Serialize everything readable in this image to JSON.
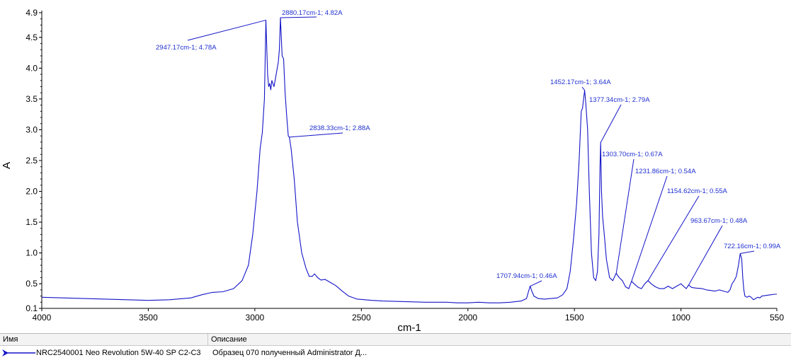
{
  "chart_data": {
    "type": "line",
    "title": "",
    "xlabel": "cm-1",
    "ylabel": "A",
    "xlim": [
      4000,
      550
    ],
    "ylim": [
      0.1,
      4.9
    ],
    "x_reversed": true,
    "grid": false,
    "x_ticks": [
      "4000",
      "3500",
      "3000",
      "2500",
      "2000",
      "1500",
      "1000",
      "550"
    ],
    "x_tick_values": [
      4000,
      3500,
      3000,
      2500,
      2000,
      1500,
      1000,
      550
    ],
    "y_ticks": [
      "0.1",
      "0.5",
      "1.0",
      "1.5",
      "2.0",
      "2.5",
      "3.0",
      "3.5",
      "4.0",
      "4.5",
      "4.9"
    ],
    "y_tick_values": [
      0.1,
      0.5,
      1.0,
      1.5,
      2.0,
      2.5,
      3.0,
      3.5,
      4.0,
      4.5,
      4.9
    ],
    "line_color": "#1414c8",
    "annotation_color": "#1f2fd0",
    "series": [
      {
        "name": "NRC2540001 Neo Revolution 5W-40 SP C2-C3",
        "points": [
          [
            4000,
            0.28
          ],
          [
            3900,
            0.27
          ],
          [
            3800,
            0.26
          ],
          [
            3700,
            0.25
          ],
          [
            3600,
            0.24
          ],
          [
            3500,
            0.23
          ],
          [
            3400,
            0.24
          ],
          [
            3300,
            0.27
          ],
          [
            3250,
            0.32
          ],
          [
            3200,
            0.36
          ],
          [
            3150,
            0.37
          ],
          [
            3100,
            0.42
          ],
          [
            3060,
            0.55
          ],
          [
            3030,
            0.8
          ],
          [
            3010,
            1.3
          ],
          [
            2990,
            2.0
          ],
          [
            2975,
            2.7
          ],
          [
            2965,
            2.95
          ],
          [
            2955,
            3.5
          ],
          [
            2948,
            4.78
          ],
          [
            2940,
            3.9
          ],
          [
            2935,
            3.7
          ],
          [
            2930,
            3.75
          ],
          [
            2925,
            3.65
          ],
          [
            2920,
            3.8
          ],
          [
            2910,
            3.7
          ],
          [
            2900,
            3.9
          ],
          [
            2890,
            4.1
          ],
          [
            2885,
            4.3
          ],
          [
            2880,
            4.82
          ],
          [
            2872,
            4.2
          ],
          [
            2865,
            4.15
          ],
          [
            2858,
            3.6
          ],
          [
            2850,
            3.2
          ],
          [
            2843,
            2.9
          ],
          [
            2838,
            2.88
          ],
          [
            2830,
            2.7
          ],
          [
            2815,
            2.2
          ],
          [
            2800,
            1.5
          ],
          [
            2780,
            1.0
          ],
          [
            2760,
            0.75
          ],
          [
            2745,
            0.62
          ],
          [
            2730,
            0.62
          ],
          [
            2720,
            0.66
          ],
          [
            2705,
            0.6
          ],
          [
            2690,
            0.56
          ],
          [
            2670,
            0.57
          ],
          [
            2650,
            0.53
          ],
          [
            2620,
            0.47
          ],
          [
            2590,
            0.38
          ],
          [
            2560,
            0.3
          ],
          [
            2520,
            0.25
          ],
          [
            2450,
            0.23
          ],
          [
            2400,
            0.22
          ],
          [
            2300,
            0.21
          ],
          [
            2200,
            0.2
          ],
          [
            2100,
            0.2
          ],
          [
            2050,
            0.19
          ],
          [
            2000,
            0.19
          ],
          [
            1950,
            0.2
          ],
          [
            1900,
            0.19
          ],
          [
            1850,
            0.19
          ],
          [
            1800,
            0.2
          ],
          [
            1750,
            0.22
          ],
          [
            1725,
            0.26
          ],
          [
            1715,
            0.38
          ],
          [
            1708,
            0.46
          ],
          [
            1700,
            0.38
          ],
          [
            1690,
            0.3
          ],
          [
            1670,
            0.26
          ],
          [
            1640,
            0.25
          ],
          [
            1610,
            0.26
          ],
          [
            1580,
            0.27
          ],
          [
            1555,
            0.32
          ],
          [
            1535,
            0.42
          ],
          [
            1520,
            0.7
          ],
          [
            1505,
            1.2
          ],
          [
            1490,
            1.8
          ],
          [
            1478,
            2.5
          ],
          [
            1468,
            3.3
          ],
          [
            1462,
            3.35
          ],
          [
            1457,
            3.5
          ],
          [
            1452,
            3.64
          ],
          [
            1447,
            3.45
          ],
          [
            1443,
            3.25
          ],
          [
            1438,
            3.0
          ],
          [
            1430,
            2.0
          ],
          [
            1420,
            1.0
          ],
          [
            1410,
            0.6
          ],
          [
            1400,
            0.55
          ],
          [
            1392,
            0.7
          ],
          [
            1385,
            1.3
          ],
          [
            1380,
            2.4
          ],
          [
            1377,
            2.79
          ],
          [
            1373,
            2.0
          ],
          [
            1368,
            1.6
          ],
          [
            1360,
            1.3
          ],
          [
            1350,
            0.9
          ],
          [
            1335,
            0.6
          ],
          [
            1320,
            0.55
          ],
          [
            1304,
            0.67
          ],
          [
            1290,
            0.6
          ],
          [
            1275,
            0.55
          ],
          [
            1260,
            0.45
          ],
          [
            1245,
            0.42
          ],
          [
            1232,
            0.54
          ],
          [
            1220,
            0.5
          ],
          [
            1200,
            0.44
          ],
          [
            1185,
            0.42
          ],
          [
            1170,
            0.5
          ],
          [
            1155,
            0.55
          ],
          [
            1140,
            0.5
          ],
          [
            1120,
            0.45
          ],
          [
            1100,
            0.42
          ],
          [
            1080,
            0.42
          ],
          [
            1060,
            0.46
          ],
          [
            1040,
            0.42
          ],
          [
            1020,
            0.46
          ],
          [
            1000,
            0.5
          ],
          [
            985,
            0.45
          ],
          [
            975,
            0.42
          ],
          [
            964,
            0.48
          ],
          [
            950,
            0.44
          ],
          [
            930,
            0.43
          ],
          [
            900,
            0.42
          ],
          [
            880,
            0.4
          ],
          [
            860,
            0.39
          ],
          [
            840,
            0.38
          ],
          [
            820,
            0.4
          ],
          [
            800,
            0.38
          ],
          [
            780,
            0.36
          ],
          [
            770,
            0.4
          ],
          [
            760,
            0.5
          ],
          [
            750,
            0.55
          ],
          [
            740,
            0.62
          ],
          [
            730,
            0.8
          ],
          [
            722,
            0.99
          ],
          [
            715,
            0.9
          ],
          [
            710,
            0.6
          ],
          [
            705,
            0.4
          ],
          [
            700,
            0.3
          ],
          [
            690,
            0.28
          ],
          [
            680,
            0.3
          ],
          [
            670,
            0.28
          ],
          [
            660,
            0.24
          ],
          [
            650,
            0.26
          ],
          [
            640,
            0.28
          ],
          [
            630,
            0.27
          ],
          [
            620,
            0.3
          ],
          [
            600,
            0.31
          ],
          [
            580,
            0.32
          ],
          [
            560,
            0.33
          ],
          [
            550,
            0.33
          ]
        ]
      }
    ],
    "annotations": [
      {
        "label": "2947.17cm-1; 4.78A",
        "x": 2947.17,
        "y": 4.78
      },
      {
        "label": "2880.17cm-1; 4.82A",
        "x": 2880.17,
        "y": 4.82
      },
      {
        "label": "2838.33cm-1; 2.88A",
        "x": 2838.33,
        "y": 2.88
      },
      {
        "label": "1707.94cm-1; 0.46A",
        "x": 1707.94,
        "y": 0.46
      },
      {
        "label": "1452.17cm-1; 3.64A",
        "x": 1452.17,
        "y": 3.64
      },
      {
        "label": "1377.34cm-1; 2.79A",
        "x": 1377.34,
        "y": 2.79
      },
      {
        "label": "1303.70cm-1; 0.67A",
        "x": 1303.7,
        "y": 0.67
      },
      {
        "label": "1231.86cm-1; 0.54A",
        "x": 1231.86,
        "y": 0.54
      },
      {
        "label": "1154.62cm-1; 0.55A",
        "x": 1154.62,
        "y": 0.55
      },
      {
        "label": "963.67cm-1; 0.48A",
        "x": 963.67,
        "y": 0.48
      },
      {
        "label": "722.16cm-1; 0.99A",
        "x": 722.16,
        "y": 0.99
      }
    ]
  },
  "legend": {
    "columns": [
      "Имя",
      "Описание"
    ],
    "rows": [
      {
        "name": "NRC2540001 Neo Revolution 5W-40 SP C2-C3",
        "description": "Образец 070 полученный Administrator Д..."
      }
    ]
  }
}
